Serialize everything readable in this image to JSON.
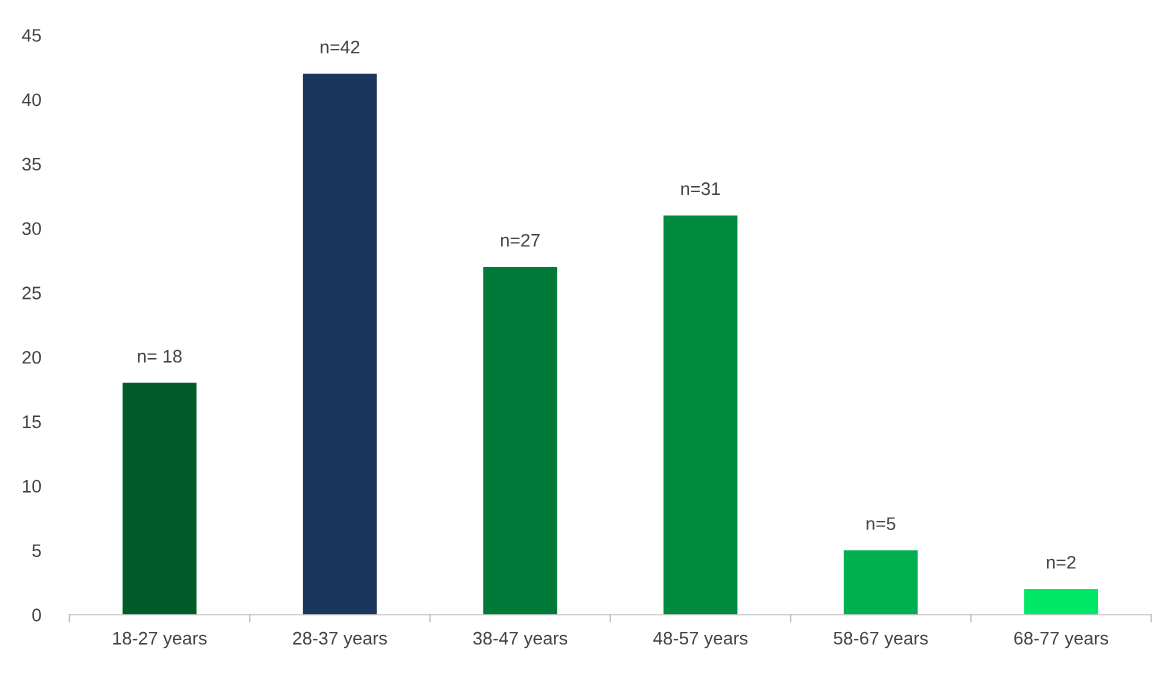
{
  "chart_data": {
    "type": "bar",
    "categories": [
      "18-27 years",
      "28-37 years",
      "38-47 years",
      "48-57 years",
      "58-67 years",
      "68-77 years"
    ],
    "values": [
      18,
      42,
      27,
      31,
      5,
      2
    ],
    "colors": [
      "#005a2a",
      "#1a365d",
      "#007a38",
      "#008a3e",
      "#00b050",
      "#00e865"
    ],
    "value_labels": [
      "n= 18",
      "n=42",
      "n=27",
      "n=31",
      "n=5",
      "n=2"
    ],
    "ylim": [
      0,
      45
    ],
    "yticks": [
      0,
      5,
      10,
      15,
      20,
      25,
      30,
      35,
      40,
      45
    ],
    "grid": false,
    "legend": false
  }
}
